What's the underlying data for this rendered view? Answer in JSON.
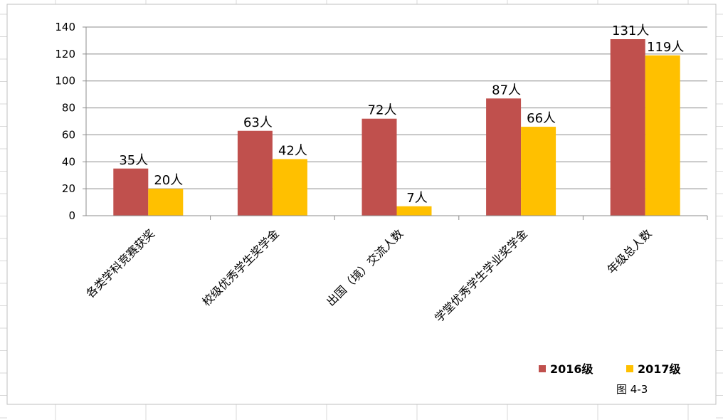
{
  "chart_data": {
    "type": "bar",
    "categories": [
      "各类学科竞赛获奖",
      "校级优秀学生奖学金",
      "出国（境）交流人数",
      "学堂优秀学生学业奖学金",
      "年级总人数"
    ],
    "series": [
      {
        "name": "2016级",
        "values": [
          35,
          63,
          72,
          87,
          131
        ],
        "color": "#c0504d",
        "labels": [
          "35人",
          "63人",
          "72人",
          "87人",
          "131人"
        ]
      },
      {
        "name": "2017级",
        "values": [
          20,
          42,
          7,
          66,
          119
        ],
        "color": "#ffc000",
        "labels": [
          "20人",
          "42人",
          "7人",
          "66人",
          "119人"
        ]
      }
    ],
    "ylim": [
      0,
      140
    ],
    "yticks": [
      "0",
      "20",
      "40",
      "60",
      "80",
      "100",
      "120",
      "140"
    ],
    "grid": true,
    "legend_position": "bottom-right",
    "caption": "图 4-3",
    "title": "",
    "xlabel": "",
    "ylabel": ""
  }
}
